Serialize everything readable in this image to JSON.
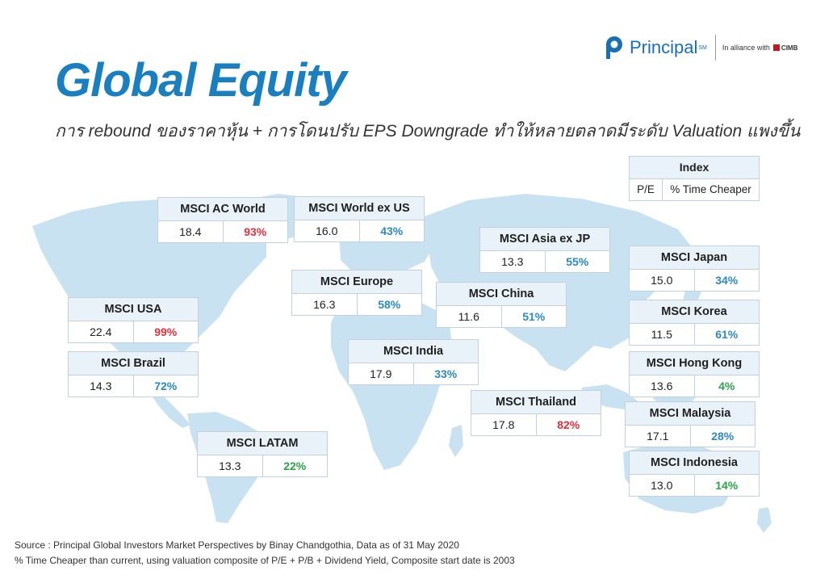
{
  "title": "Global Equity",
  "subtitle": "การ rebound ของราคาหุ้น + การโดนปรับ EPS Downgrade ทำให้หลายตลาดมีระดับ Valuation แพงขึ้น",
  "logo": {
    "name": "Principal",
    "tm": "SM",
    "alliance": "In alliance with",
    "partner": "CIMB"
  },
  "legend": {
    "title": "Index",
    "col1": "P/E",
    "col2": "% Time Cheaper"
  },
  "colors": {
    "red": "#e0313a",
    "blue": "#2a8ac4",
    "green": "#2aa34a",
    "brand": "#1a7fc1",
    "map": "#c9e2f2"
  },
  "markets": [
    {
      "id": "ac-world",
      "name": "MSCI AC World",
      "pe": "18.4",
      "pct": "93%",
      "color": "red"
    },
    {
      "id": "world-ex-us",
      "name": "MSCI World ex US",
      "pe": "16.0",
      "pct": "43%",
      "color": "blue"
    },
    {
      "id": "asia-ex-jp",
      "name": "MSCI Asia ex JP",
      "pe": "13.3",
      "pct": "55%",
      "color": "blue"
    },
    {
      "id": "japan",
      "name": "MSCI Japan",
      "pe": "15.0",
      "pct": "34%",
      "color": "blue"
    },
    {
      "id": "europe",
      "name": "MSCI Europe",
      "pe": "16.3",
      "pct": "58%",
      "color": "blue"
    },
    {
      "id": "china",
      "name": "MSCI China",
      "pe": "11.6",
      "pct": "51%",
      "color": "blue"
    },
    {
      "id": "usa",
      "name": "MSCI USA",
      "pe": "22.4",
      "pct": "99%",
      "color": "red"
    },
    {
      "id": "korea",
      "name": "MSCI Korea",
      "pe": "11.5",
      "pct": "61%",
      "color": "blue"
    },
    {
      "id": "india",
      "name": "MSCI India",
      "pe": "17.9",
      "pct": "33%",
      "color": "blue"
    },
    {
      "id": "brazil",
      "name": "MSCI Brazil",
      "pe": "14.3",
      "pct": "72%",
      "color": "blue"
    },
    {
      "id": "hong-kong",
      "name": "MSCI Hong Kong",
      "pe": "13.6",
      "pct": "4%",
      "color": "green"
    },
    {
      "id": "thailand",
      "name": "MSCI Thailand",
      "pe": "17.8",
      "pct": "82%",
      "color": "red"
    },
    {
      "id": "malaysia",
      "name": "MSCI Malaysia",
      "pe": "17.1",
      "pct": "28%",
      "color": "blue"
    },
    {
      "id": "latam",
      "name": "MSCI LATAM",
      "pe": "13.3",
      "pct": "22%",
      "color": "green"
    },
    {
      "id": "indonesia",
      "name": "MSCI Indonesia",
      "pe": "13.0",
      "pct": "14%",
      "color": "green"
    }
  ],
  "footnotes": [
    "Source : Principal Global Investors Market Perspectives by Binay Chandgothia, Data as of 31 May 2020",
    "% Time Cheaper than current, using valuation composite of P/E + P/B + Dividend Yield, Composite start date is 2003"
  ]
}
